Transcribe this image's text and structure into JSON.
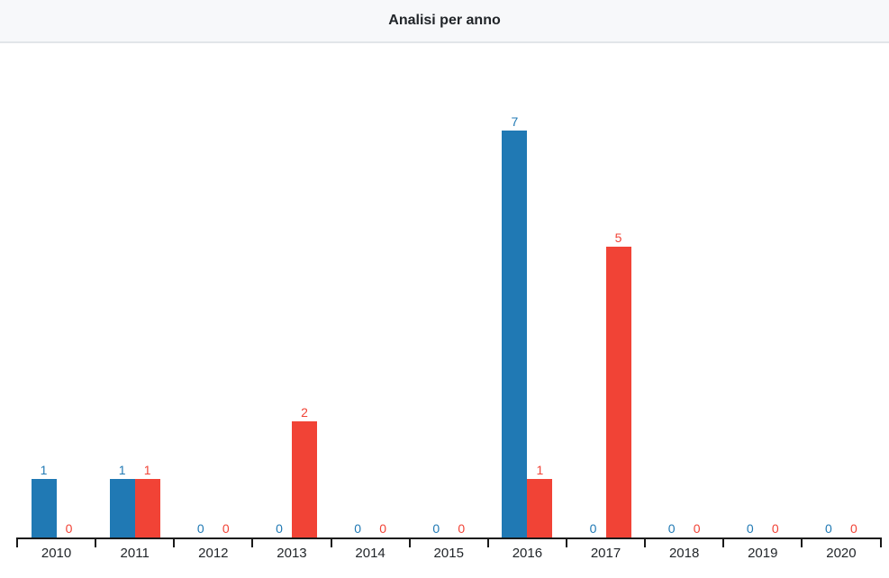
{
  "header": {
    "title": "Analisi per anno"
  },
  "colors": {
    "blue_series": "#2079b4",
    "red_series": "#f14336",
    "axis": "#1a1a1a",
    "tick_label": "#212529",
    "header_bg": "#f7f8fa",
    "header_border": "#e2e5e9"
  },
  "chart_data": {
    "type": "bar",
    "title": "Analisi per anno",
    "categories": [
      "2010",
      "2011",
      "2012",
      "2013",
      "2014",
      "2015",
      "2016",
      "2017",
      "2018",
      "2019",
      "2020"
    ],
    "series": [
      {
        "id": "blue",
        "color": "#2079b4",
        "values": [
          1,
          1,
          0,
          0,
          0,
          0,
          7,
          0,
          0,
          0,
          0
        ]
      },
      {
        "id": "red",
        "color": "#f14336",
        "values": [
          0,
          1,
          0,
          2,
          0,
          0,
          1,
          5,
          0,
          0,
          0
        ]
      }
    ],
    "xlabel": "",
    "ylabel": "",
    "ylim": [
      0,
      8.5
    ],
    "grid": false,
    "legend_position": "none",
    "value_labels_shown": true
  }
}
